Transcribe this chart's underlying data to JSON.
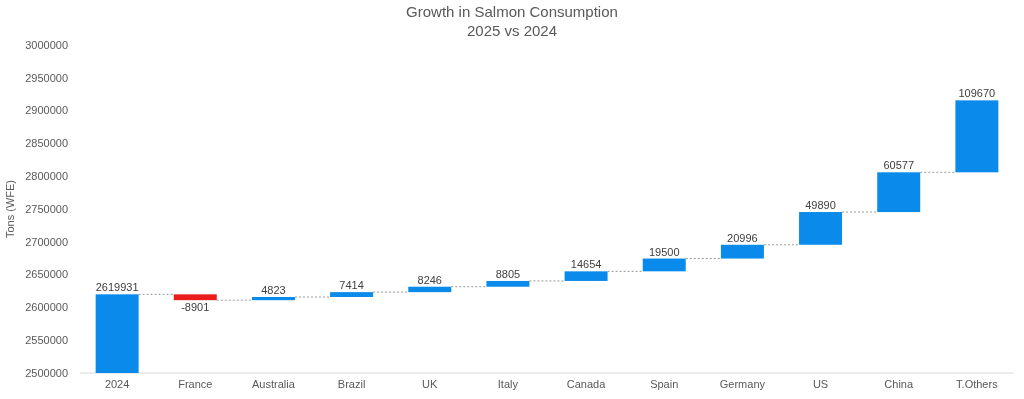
{
  "chart_data": {
    "type": "bar",
    "title": "Growth in Salmon Consumption",
    "subtitle": "2025 vs 2024",
    "ylabel": "Tons (WFE)",
    "categories": [
      "2024",
      "France",
      "Australia",
      "Brazil",
      "UK",
      "Italy",
      "Canada",
      "Spain",
      "Germany",
      "US",
      "China",
      "T.Others"
    ],
    "values": [
      2619931,
      -8901,
      4823,
      7414,
      8246,
      8805,
      14654,
      19500,
      20996,
      49890,
      60577,
      109670
    ],
    "base": [
      0,
      2619931,
      2611030,
      2615853,
      2623267,
      2631513,
      2640318,
      2654972,
      2674472,
      2695468,
      2745358,
      2805935
    ],
    "colors": [
      "#0a8aea",
      "#ea1c1c",
      "#0a8aea",
      "#0a8aea",
      "#0a8aea",
      "#0a8aea",
      "#0a8aea",
      "#0a8aea",
      "#0a8aea",
      "#0a8aea",
      "#0a8aea",
      "#0a8aea"
    ],
    "ylim": [
      2500000,
      3000000
    ],
    "yticks": [
      2500000,
      2550000,
      2600000,
      2650000,
      2700000,
      2750000,
      2800000,
      2850000,
      2900000,
      2950000,
      3000000
    ],
    "data_labels": true
  }
}
